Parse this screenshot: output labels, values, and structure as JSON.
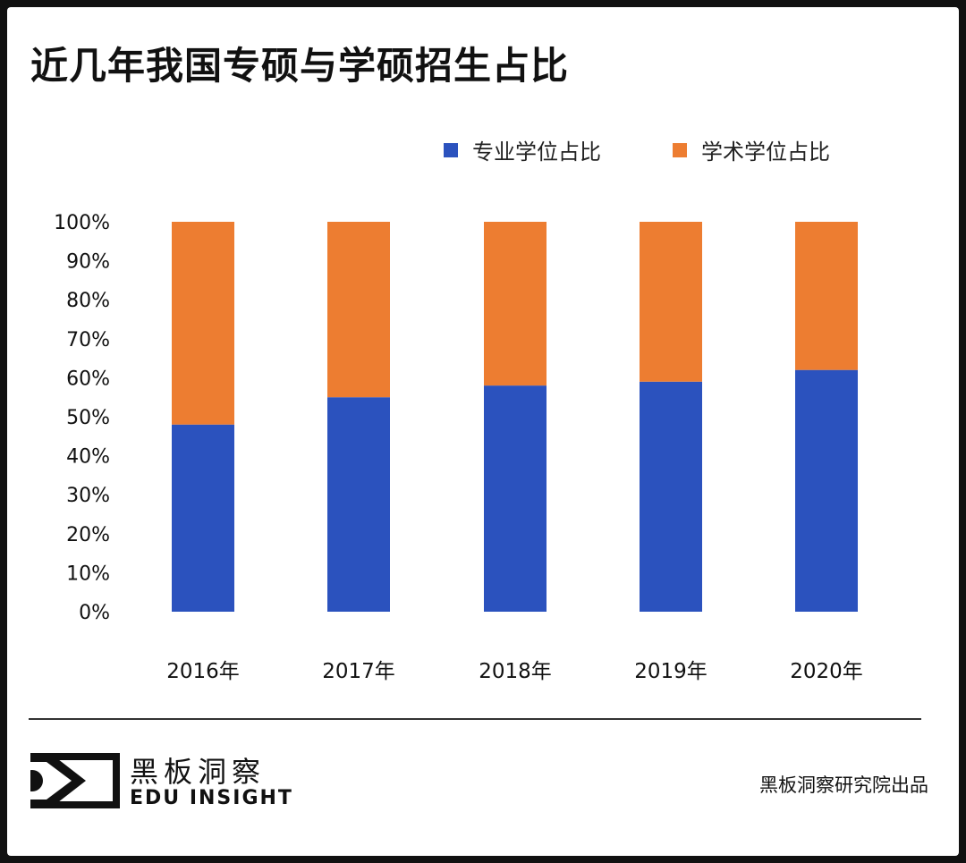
{
  "title": "近几年我国专硕与学硕招生占比",
  "chart_data": {
    "type": "bar",
    "stacked": true,
    "title": "近几年我国专硕与学硕招生占比",
    "categories": [
      "2016年",
      "2017年",
      "2018年",
      "2019年",
      "2020年"
    ],
    "series": [
      {
        "name": "专业学位占比",
        "color": "#2b52be",
        "values": [
          48,
          55,
          58,
          59,
          62
        ]
      },
      {
        "name": "学术学位占比",
        "color": "#ed7d31",
        "values": [
          52,
          45,
          42,
          41,
          38
        ]
      }
    ],
    "yticks": [
      "0%",
      "10%",
      "20%",
      "30%",
      "40%",
      "50%",
      "60%",
      "70%",
      "80%",
      "90%",
      "100%"
    ],
    "ylim": [
      0,
      100
    ],
    "grid": false,
    "legend_position": "top-right"
  },
  "footer": {
    "brand_cn": "黑板洞察",
    "brand_en": "EDU INSIGHT",
    "credit": "黑板洞察研究院出品"
  }
}
